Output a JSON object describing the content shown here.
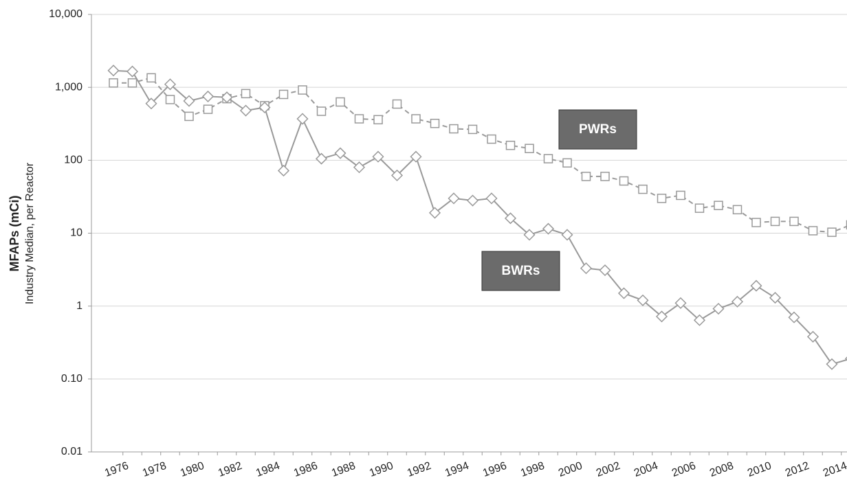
{
  "chart_data": {
    "type": "line",
    "y_title": "MFAPs (mCi)",
    "y_subtitle": "Industry Median, per Reactor",
    "log_scale": true,
    "grid": true,
    "ylim": [
      0.01,
      10000
    ],
    "yticks": [
      0.01,
      {
        "value": 0.1,
        "label": "0.10"
      },
      1,
      10,
      100,
      {
        "value": 1000,
        "label": "1,000"
      },
      {
        "value": 10000,
        "label": "10,000"
      }
    ],
    "categories": [
      null,
      "1976",
      null,
      "1978",
      null,
      "1980",
      null,
      "1982",
      null,
      "1984",
      null,
      "1986",
      null,
      "1988",
      null,
      "1990",
      null,
      "1992",
      null,
      "1994",
      null,
      "1996",
      null,
      "1998",
      null,
      "2000",
      null,
      "2002",
      null,
      "2004",
      null,
      "2006",
      null,
      "2008",
      null,
      "2010",
      null,
      "2012",
      null,
      "2014"
    ],
    "series": [
      {
        "name": "PWRs",
        "color": "#999999",
        "marker": "square",
        "dashed": true,
        "values": [
          1150,
          1150,
          1350,
          680,
          400,
          500,
          700,
          820,
          560,
          800,
          920,
          470,
          630,
          370,
          360,
          590,
          370,
          320,
          270,
          265,
          195,
          160,
          145,
          105,
          92,
          60,
          60,
          52,
          40,
          30,
          33,
          22,
          24,
          21,
          14,
          14.5,
          14.5,
          10.8,
          10.3,
          13
        ]
      },
      {
        "name": "BWRs",
        "color": "#999999",
        "marker": "diamond",
        "dashed": false,
        "values": [
          1700,
          1650,
          600,
          1100,
          650,
          750,
          730,
          480,
          530,
          72,
          370,
          105,
          125,
          80,
          112,
          62,
          112,
          19,
          30,
          28,
          30,
          16,
          9.5,
          11.5,
          9.5,
          3.3,
          3.1,
          1.5,
          1.2,
          0.72,
          1.1,
          0.64,
          0.92,
          1.15,
          1.9,
          1.3,
          0.7,
          0.38,
          0.16,
          0.19
        ]
      }
    ]
  }
}
